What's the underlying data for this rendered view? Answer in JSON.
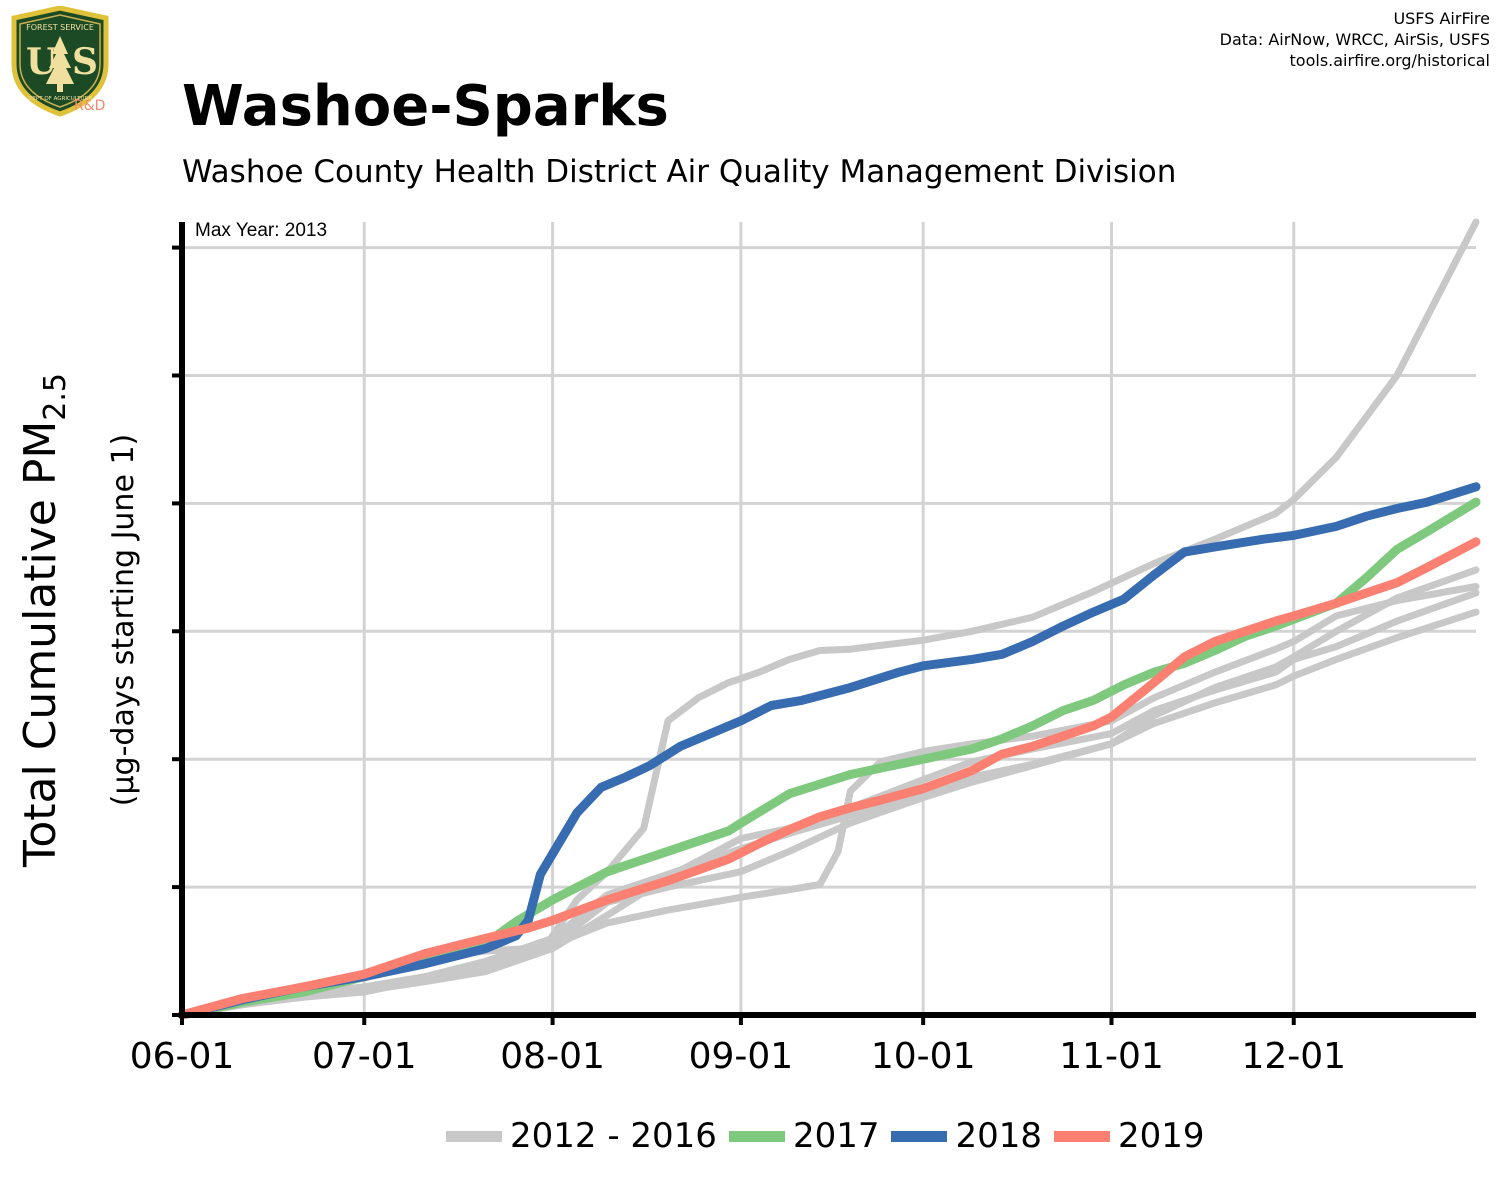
{
  "header": {
    "credit_lines": [
      "USFS AirFire",
      "Data: AirNow, WRCC, AirSis, USFS",
      "tools.airfire.org/historical"
    ],
    "logo_text": "FOREST SERVICE · U S · DEPARTMENT OF AGRICULTURE",
    "logo_rd": "R&D"
  },
  "chart_data": {
    "type": "line",
    "title": "Washoe-Sparks",
    "subtitle": "Washoe County Health District Air Quality Management Division",
    "annotation": "Max Year: 2013",
    "ylabel_main": "Total Cumulative PM",
    "ylabel_sub": "2.5",
    "ylabel_units": "(µg-days starting June 1)",
    "x_ticks": [
      "06-01",
      "07-01",
      "08-01",
      "09-01",
      "10-01",
      "11-01",
      "12-01"
    ],
    "x_tick_days": [
      0,
      30,
      61,
      92,
      122,
      153,
      183
    ],
    "xlim_days": [
      0,
      213
    ],
    "y_ticks": [
      0,
      1,
      2,
      3,
      4,
      5,
      6
    ],
    "ylim": [
      0,
      6.2
    ],
    "y_tick_labels_shown": false,
    "grid": true,
    "legend_position": "bottom",
    "colors": {
      "background": "#c8c8c8",
      "2017": "#7fc97f",
      "2018": "#386cb0",
      "2019": "#fb8072",
      "grid": "#d3d3d3",
      "axis": "#000000"
    },
    "legend": [
      {
        "label": "2012 - 2016",
        "color": "#c8c8c8"
      },
      {
        "label": "2017",
        "color": "#7fc97f"
      },
      {
        "label": "2018",
        "color": "#386cb0"
      },
      {
        "label": "2019",
        "color": "#fb8072"
      }
    ],
    "series": [
      {
        "name": "2012 - 2016",
        "group": "background",
        "x": [
          0,
          10,
          20,
          30,
          40,
          50,
          57,
          60,
          65,
          70,
          76,
          80,
          85,
          90,
          92,
          95,
          100,
          105,
          110,
          115,
          122,
          130,
          140,
          150,
          160,
          170,
          180,
          183,
          190,
          200,
          213
        ],
        "y": [
          0,
          0.13,
          0.2,
          0.3,
          0.44,
          0.5,
          0.52,
          0.55,
          0.9,
          1.12,
          1.46,
          2.3,
          2.48,
          2.6,
          2.63,
          2.68,
          2.78,
          2.85,
          2.86,
          2.89,
          2.93,
          3.0,
          3.11,
          3.31,
          3.53,
          3.72,
          3.92,
          4.03,
          4.36,
          5.0,
          6.2
        ]
      },
      {
        "name": "2012 - 2016",
        "group": "background",
        "x": [
          0,
          10,
          20,
          30,
          40,
          50,
          61,
          70,
          80,
          92,
          100,
          105,
          108,
          110,
          115,
          122,
          130,
          140,
          153,
          160,
          170,
          180,
          183,
          190,
          200,
          213
        ],
        "y": [
          0,
          0.08,
          0.14,
          0.18,
          0.28,
          0.4,
          0.55,
          0.72,
          0.82,
          0.92,
          0.98,
          1.02,
          1.28,
          1.75,
          1.98,
          2.06,
          2.12,
          2.18,
          2.3,
          2.48,
          2.68,
          2.86,
          2.92,
          3.12,
          3.24,
          3.35
        ]
      },
      {
        "name": "2012 - 2016",
        "group": "background",
        "x": [
          0,
          10,
          20,
          30,
          40,
          50,
          61,
          70,
          80,
          92,
          100,
          110,
          122,
          130,
          140,
          153,
          160,
          170,
          180,
          183,
          190,
          200,
          213
        ],
        "y": [
          0,
          0.1,
          0.15,
          0.2,
          0.27,
          0.36,
          0.55,
          0.88,
          1.0,
          1.12,
          1.28,
          1.5,
          1.7,
          1.82,
          1.95,
          2.12,
          2.28,
          2.44,
          2.58,
          2.65,
          2.78,
          2.95,
          3.15
        ]
      },
      {
        "name": "2012 - 2016",
        "group": "background",
        "x": [
          0,
          10,
          20,
          30,
          40,
          50,
          61,
          70,
          80,
          92,
          100,
          110,
          122,
          130,
          140,
          153,
          160,
          170,
          180,
          183,
          190,
          200,
          213
        ],
        "y": [
          0,
          0.09,
          0.14,
          0.19,
          0.26,
          0.34,
          0.52,
          0.78,
          1.08,
          1.38,
          1.46,
          1.62,
          1.84,
          1.98,
          2.08,
          2.2,
          2.38,
          2.54,
          2.68,
          2.78,
          2.88,
          3.08,
          3.3
        ]
      },
      {
        "name": "2012 - 2016",
        "group": "background",
        "x": [
          0,
          10,
          20,
          30,
          40,
          50,
          61,
          70,
          80,
          92,
          100,
          110,
          122,
          130,
          140,
          153,
          160,
          170,
          180,
          183,
          190,
          200,
          213
        ],
        "y": [
          0,
          0.11,
          0.17,
          0.22,
          0.3,
          0.42,
          0.6,
          0.94,
          1.1,
          1.3,
          1.42,
          1.56,
          1.74,
          1.86,
          1.96,
          2.12,
          2.34,
          2.56,
          2.72,
          2.8,
          3.0,
          3.26,
          3.48
        ]
      },
      {
        "name": "2017",
        "x": [
          0,
          10,
          20,
          30,
          40,
          50,
          55,
          61,
          70,
          80,
          90,
          92,
          100,
          110,
          122,
          130,
          135,
          140,
          145,
          150,
          155,
          160,
          165,
          170,
          175,
          180,
          185,
          190,
          195,
          200,
          205,
          213
        ],
        "y": [
          0,
          0.1,
          0.18,
          0.3,
          0.45,
          0.56,
          0.73,
          0.9,
          1.12,
          1.28,
          1.44,
          1.5,
          1.73,
          1.88,
          2.0,
          2.08,
          2.16,
          2.26,
          2.38,
          2.46,
          2.58,
          2.68,
          2.75,
          2.85,
          2.96,
          3.04,
          3.13,
          3.22,
          3.42,
          3.64,
          3.78,
          4.01
        ]
      },
      {
        "name": "2018",
        "x": [
          0,
          10,
          20,
          30,
          40,
          50,
          55,
          57,
          59,
          61,
          65,
          69,
          73,
          77,
          82,
          87,
          92,
          97,
          102,
          110,
          118,
          122,
          130,
          135,
          140,
          145,
          150,
          155,
          160,
          165,
          170,
          178,
          183,
          190,
          195,
          200,
          205,
          213
        ],
        "y": [
          0,
          0.12,
          0.22,
          0.3,
          0.4,
          0.52,
          0.62,
          0.74,
          1.1,
          1.26,
          1.58,
          1.78,
          1.86,
          1.95,
          2.1,
          2.2,
          2.3,
          2.42,
          2.46,
          2.56,
          2.68,
          2.73,
          2.78,
          2.82,
          2.92,
          3.04,
          3.15,
          3.25,
          3.44,
          3.62,
          3.66,
          3.72,
          3.75,
          3.82,
          3.9,
          3.96,
          4.01,
          4.13
        ]
      },
      {
        "name": "2019",
        "x": [
          0,
          10,
          20,
          30,
          40,
          50,
          57,
          61,
          70,
          80,
          90,
          95,
          100,
          105,
          110,
          115,
          122,
          130,
          135,
          140,
          145,
          150,
          153,
          160,
          165,
          170,
          175,
          180,
          183,
          190,
          195,
          200,
          205,
          213
        ],
        "y": [
          0,
          0.13,
          0.22,
          0.32,
          0.48,
          0.6,
          0.68,
          0.74,
          0.9,
          1.05,
          1.22,
          1.34,
          1.45,
          1.55,
          1.62,
          1.68,
          1.77,
          1.91,
          2.04,
          2.1,
          2.18,
          2.26,
          2.33,
          2.6,
          2.8,
          2.92,
          3.0,
          3.08,
          3.12,
          3.22,
          3.3,
          3.38,
          3.5,
          3.7
        ]
      }
    ]
  }
}
